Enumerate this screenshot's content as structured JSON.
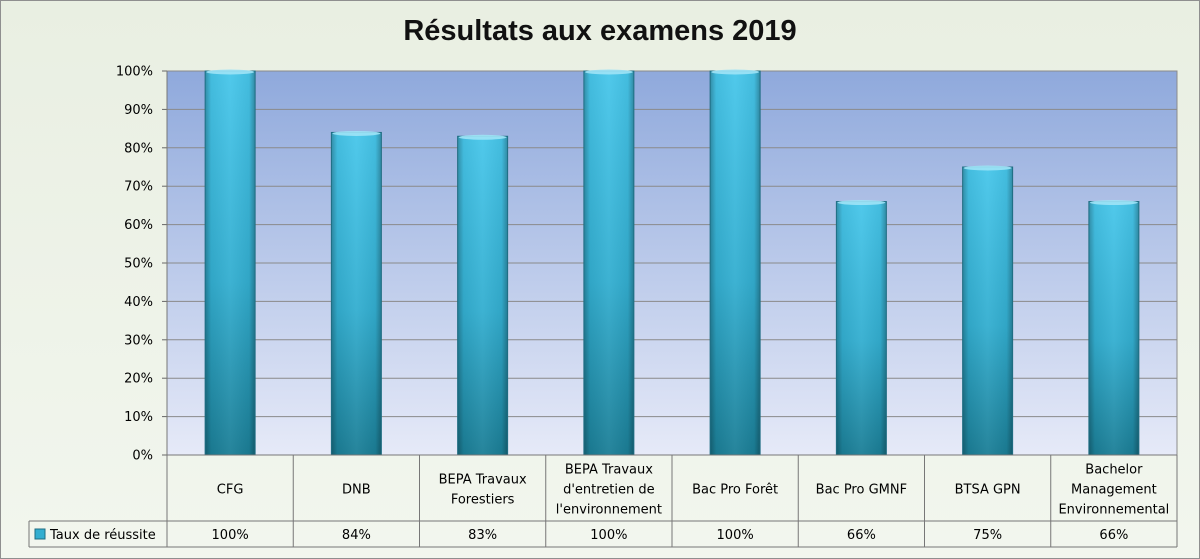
{
  "chart_data": {
    "type": "bar",
    "title": "Résultats aux examens 2019",
    "categories": [
      "CFG",
      "DNB",
      "BEPA Travaux Forestiers",
      "BEPA Travaux d'entretien de l'environnement",
      "Bac Pro Forêt",
      "Bac Pro GMNF",
      "BTSA GPN",
      "Bachelor Management Environnemental"
    ],
    "category_lines": [
      [
        "CFG"
      ],
      [
        "DNB"
      ],
      [
        "BEPA Travaux",
        "Forestiers"
      ],
      [
        "BEPA Travaux",
        "d'entretien de",
        "l'environnement"
      ],
      [
        "Bac Pro Forêt"
      ],
      [
        "Bac Pro GMNF"
      ],
      [
        "BTSA GPN"
      ],
      [
        "Bachelor",
        "Management",
        "Environnemental"
      ]
    ],
    "series": [
      {
        "name": "Taux de réussite",
        "values": [
          1.0,
          0.84,
          0.83,
          1.0,
          1.0,
          0.66,
          0.75,
          0.66
        ],
        "labels": [
          "100%",
          "84%",
          "83%",
          "100%",
          "100%",
          "66%",
          "75%",
          "66%"
        ]
      }
    ],
    "yticks": [
      "0%",
      "10%",
      "20%",
      "30%",
      "40%",
      "50%",
      "60%",
      "70%",
      "80%",
      "90%",
      "100%"
    ],
    "ylim": [
      0,
      1
    ],
    "grid": true,
    "legend": "data-table",
    "colors": {
      "bar_light": "#4cc8ec",
      "bar_dark": "#1a7f97",
      "plot_top": "#8fa9dc",
      "plot_bottom": "#e6eaf8",
      "background": "#eef3e9"
    }
  }
}
